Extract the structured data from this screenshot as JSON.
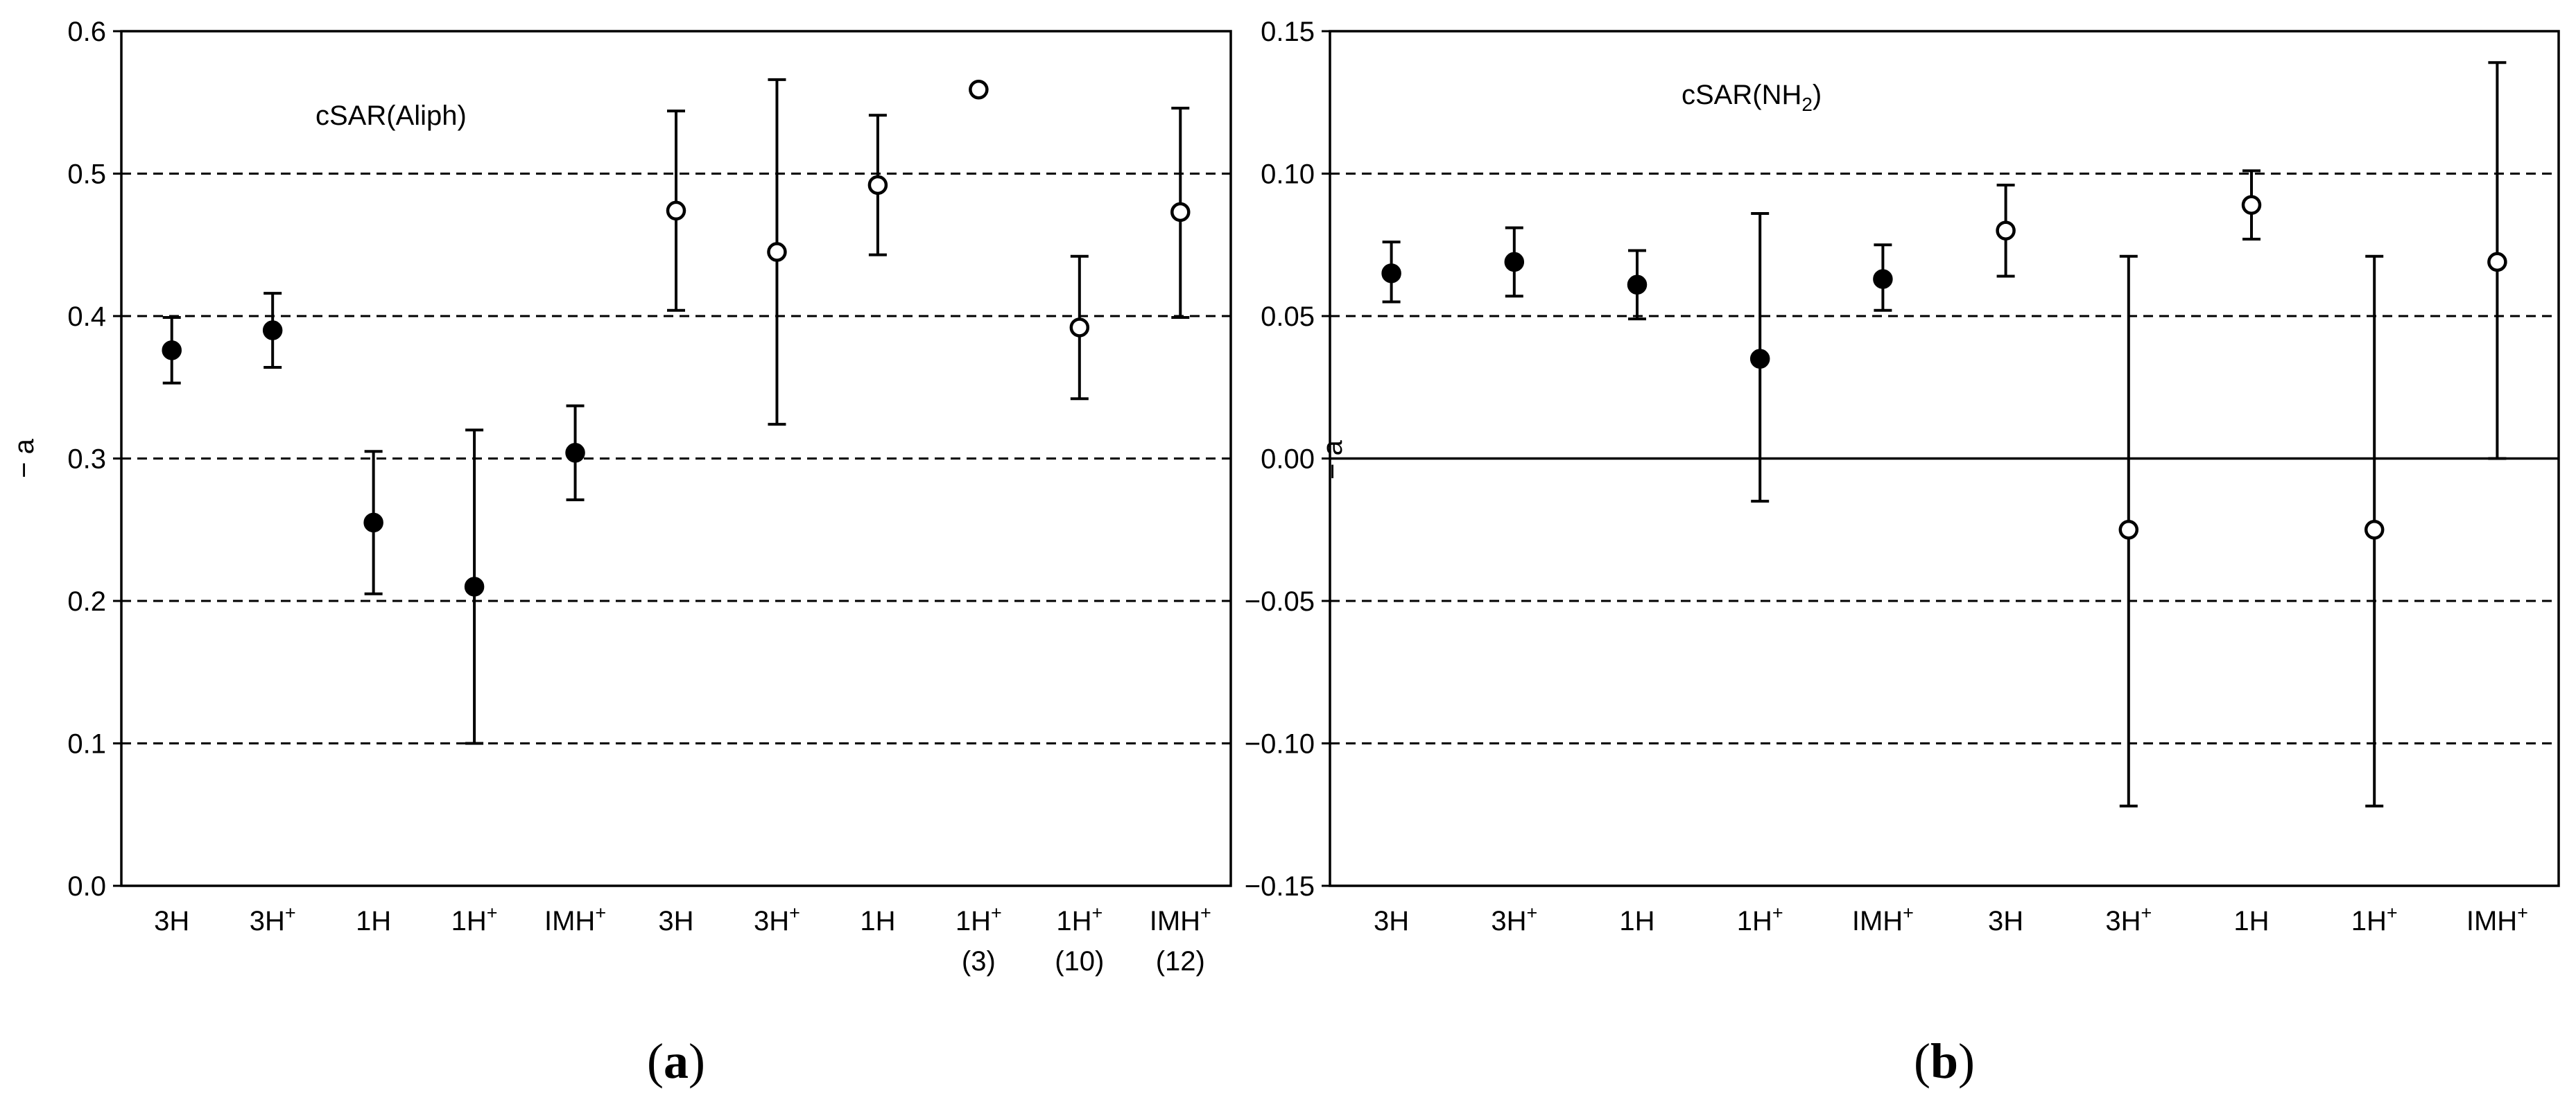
{
  "chart_data": [
    {
      "type": "scatter",
      "panel_label": "(a)",
      "annotation": "cSAR(Aliph)",
      "ylabel": "− a",
      "ylim": [
        0.0,
        0.6
      ],
      "yticks": [
        "0.0",
        "0.1",
        "0.2",
        "0.3",
        "0.4",
        "0.5",
        "0.6"
      ],
      "ytick_values": [
        0.0,
        0.1,
        0.2,
        0.3,
        0.4,
        0.5,
        0.6
      ],
      "gridlines": [
        0.1,
        0.2,
        0.3,
        0.4,
        0.5
      ],
      "grid": "dashed horizontal",
      "categories": [
        {
          "label": "3H",
          "sup": "",
          "sub": ""
        },
        {
          "label": "3H",
          "sup": "+",
          "sub": ""
        },
        {
          "label": "1H",
          "sup": "",
          "sub": ""
        },
        {
          "label": "1H",
          "sup": "+",
          "sub": ""
        },
        {
          "label": "IMH",
          "sup": "+",
          "sub": ""
        },
        {
          "label": "3H",
          "sup": "",
          "sub": ""
        },
        {
          "label": "3H",
          "sup": "+",
          "sub": ""
        },
        {
          "label": "1H",
          "sup": "",
          "sub": ""
        },
        {
          "label": "1H",
          "sup": "+",
          "sub": "(3)"
        },
        {
          "label": "1H",
          "sup": "+",
          "sub": "(10)"
        },
        {
          "label": "IMH",
          "sup": "+",
          "sub": "(12)"
        }
      ],
      "points": [
        {
          "y": 0.376,
          "low": 0.353,
          "high": 0.399,
          "filled": true
        },
        {
          "y": 0.39,
          "low": 0.364,
          "high": 0.416,
          "filled": true
        },
        {
          "y": 0.255,
          "low": 0.205,
          "high": 0.305,
          "filled": true
        },
        {
          "y": 0.21,
          "low": 0.1,
          "high": 0.32,
          "filled": true
        },
        {
          "y": 0.304,
          "low": 0.271,
          "high": 0.337,
          "filled": true
        },
        {
          "y": 0.474,
          "low": 0.404,
          "high": 0.544,
          "filled": false
        },
        {
          "y": 0.445,
          "low": 0.324,
          "high": 0.566,
          "filled": false
        },
        {
          "y": 0.492,
          "low": 0.443,
          "high": 0.541,
          "filled": false
        },
        {
          "y": 0.559,
          "low": null,
          "high": null,
          "filled": false
        },
        {
          "y": 0.392,
          "low": 0.342,
          "high": 0.442,
          "filled": false
        },
        {
          "y": 0.473,
          "low": 0.399,
          "high": 0.546,
          "filled": false
        }
      ]
    },
    {
      "type": "scatter",
      "panel_label": "(b)",
      "annotation": "cSAR(NH",
      "annotation_sub": "2",
      "annotation_end": ")",
      "ylabel": "− a",
      "ylim": [
        -0.15,
        0.15
      ],
      "yticks": [
        "−0.15",
        "−0.10",
        "−0.05",
        "0.00",
        "0.05",
        "0.10",
        "0.15"
      ],
      "ytick_values": [
        -0.15,
        -0.1,
        -0.05,
        0.0,
        0.05,
        0.1,
        0.15
      ],
      "gridlines": [
        -0.1,
        -0.05,
        0.05,
        0.1
      ],
      "zero_line": 0.0,
      "grid": "dashed horizontal",
      "categories": [
        {
          "label": "3H",
          "sup": "",
          "sub": ""
        },
        {
          "label": "3H",
          "sup": "+",
          "sub": ""
        },
        {
          "label": "1H",
          "sup": "",
          "sub": ""
        },
        {
          "label": "1H",
          "sup": "+",
          "sub": ""
        },
        {
          "label": "IMH",
          "sup": "+",
          "sub": ""
        },
        {
          "label": "3H",
          "sup": "",
          "sub": ""
        },
        {
          "label": "3H",
          "sup": "+",
          "sub": ""
        },
        {
          "label": "1H",
          "sup": "",
          "sub": ""
        },
        {
          "label": "1H",
          "sup": "+",
          "sub": ""
        },
        {
          "label": "IMH",
          "sup": "+",
          "sub": ""
        }
      ],
      "points": [
        {
          "y": 0.065,
          "low": 0.055,
          "high": 0.076,
          "filled": true
        },
        {
          "y": 0.069,
          "low": 0.057,
          "high": 0.081,
          "filled": true
        },
        {
          "y": 0.061,
          "low": 0.049,
          "high": 0.073,
          "filled": true
        },
        {
          "y": 0.035,
          "low": -0.015,
          "high": 0.086,
          "filled": true
        },
        {
          "y": 0.063,
          "low": 0.052,
          "high": 0.075,
          "filled": true
        },
        {
          "y": 0.08,
          "low": 0.064,
          "high": 0.096,
          "filled": false
        },
        {
          "y": -0.025,
          "low": -0.122,
          "high": 0.071,
          "filled": false
        },
        {
          "y": 0.089,
          "low": 0.077,
          "high": 0.101,
          "filled": false
        },
        {
          "y": -0.025,
          "low": -0.122,
          "high": 0.071,
          "filled": false
        },
        {
          "y": 0.069,
          "low": 0.0,
          "high": 0.139,
          "filled": false
        }
      ]
    }
  ]
}
